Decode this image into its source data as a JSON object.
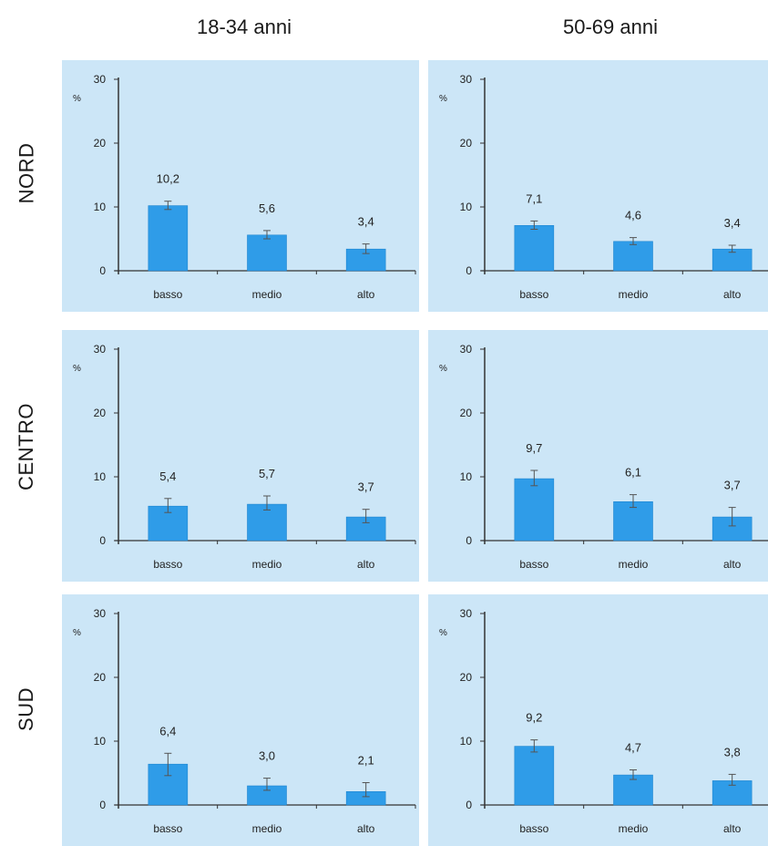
{
  "columns": [
    "18-34 anni",
    "50-69 anni"
  ],
  "rows": [
    "NORD",
    "CENTRO",
    "SUD"
  ],
  "colors": {
    "panel_bg": "#cce6f7",
    "bar": "#2f9ce8",
    "bar_edge": "#1e86d0",
    "axis": "#333333",
    "error_bar": "#555555"
  },
  "chart_data": [
    {
      "type": "bar",
      "row": "NORD",
      "column": "18-34 anni",
      "categories": [
        "basso",
        "medio",
        "alto"
      ],
      "values": [
        10.2,
        5.6,
        3.4
      ],
      "labels": [
        "10,2",
        "5,6",
        "3,4"
      ],
      "error": [
        [
          9.6,
          10.9
        ],
        [
          5.0,
          6.3
        ],
        [
          2.7,
          4.2
        ]
      ],
      "ylabel": "%",
      "yticks": [
        "0",
        "10",
        "20",
        "30"
      ],
      "ylim": [
        0,
        30
      ]
    },
    {
      "type": "bar",
      "row": "NORD",
      "column": "50-69 anni",
      "categories": [
        "basso",
        "medio",
        "alto"
      ],
      "values": [
        7.1,
        4.6,
        3.4
      ],
      "labels": [
        "7,1",
        "4,6",
        "3,4"
      ],
      "error": [
        [
          6.5,
          7.8
        ],
        [
          4.1,
          5.2
        ],
        [
          2.9,
          4.0
        ]
      ],
      "ylabel": "%",
      "yticks": [
        "0",
        "10",
        "20",
        "30"
      ],
      "ylim": [
        0,
        30
      ]
    },
    {
      "type": "bar",
      "row": "CENTRO",
      "column": "18-34 anni",
      "categories": [
        "basso",
        "medio",
        "alto"
      ],
      "values": [
        5.4,
        5.7,
        3.7
      ],
      "labels": [
        "5,4",
        "5,7",
        "3,7"
      ],
      "error": [
        [
          4.4,
          6.6
        ],
        [
          4.8,
          7.0
        ],
        [
          2.8,
          4.9
        ]
      ],
      "ylabel": "%",
      "yticks": [
        "0",
        "10",
        "20",
        "30"
      ],
      "ylim": [
        0,
        30
      ]
    },
    {
      "type": "bar",
      "row": "CENTRO",
      "column": "50-69 anni",
      "categories": [
        "basso",
        "medio",
        "alto"
      ],
      "values": [
        9.7,
        6.1,
        3.7
      ],
      "labels": [
        "9,7",
        "6,1",
        "3,7"
      ],
      "error": [
        [
          8.6,
          11.0
        ],
        [
          5.2,
          7.2
        ],
        [
          2.3,
          5.2
        ]
      ],
      "ylabel": "%",
      "yticks": [
        "0",
        "10",
        "20",
        "30"
      ],
      "ylim": [
        0,
        30
      ]
    },
    {
      "type": "bar",
      "row": "SUD",
      "column": "18-34 anni",
      "categories": [
        "basso",
        "medio",
        "alto"
      ],
      "values": [
        6.4,
        3.0,
        2.1
      ],
      "labels": [
        "6,4",
        "3,0",
        "2,1"
      ],
      "error": [
        [
          4.6,
          8.1
        ],
        [
          2.3,
          4.2
        ],
        [
          1.3,
          3.5
        ]
      ],
      "ylabel": "%",
      "yticks": [
        "0",
        "10",
        "20",
        "30"
      ],
      "ylim": [
        0,
        30
      ]
    },
    {
      "type": "bar",
      "row": "SUD",
      "column": "50-69 anni",
      "categories": [
        "basso",
        "medio",
        "alto"
      ],
      "values": [
        9.2,
        4.7,
        3.8
      ],
      "labels": [
        "9,2",
        "4,7",
        "3,8"
      ],
      "error": [
        [
          8.3,
          10.2
        ],
        [
          4.0,
          5.5
        ],
        [
          3.1,
          4.8
        ]
      ],
      "ylabel": "%",
      "yticks": [
        "0",
        "10",
        "20",
        "30"
      ],
      "ylim": [
        0,
        30
      ]
    }
  ]
}
